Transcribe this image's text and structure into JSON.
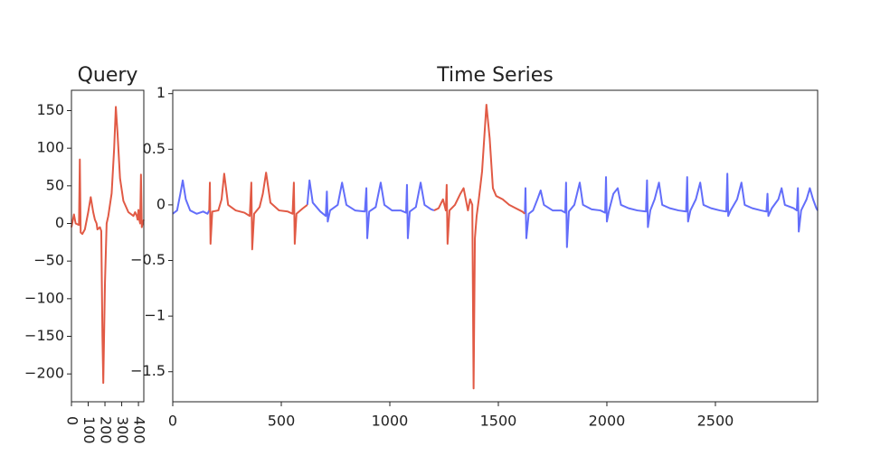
{
  "chart_data": [
    {
      "type": "line",
      "title": "Query",
      "xlim": [
        0,
        432
      ],
      "xticks": [
        0,
        100,
        200,
        300,
        400
      ],
      "ylim": [
        -237,
        177
      ],
      "yticks": [
        {
          "value": -200,
          "label": "−200"
        },
        {
          "value": -150,
          "label": "−150"
        },
        {
          "value": -100,
          "label": "−100"
        },
        {
          "value": -50,
          "label": "−50"
        },
        0,
        50,
        100,
        150
      ],
      "grid": false,
      "series": [
        {
          "color": "#e15a45",
          "x": [
            0,
            15,
            25,
            45,
            50,
            55,
            65,
            80,
            100,
            115,
            130,
            140,
            150,
            155,
            170,
            178,
            185,
            190,
            200,
            210,
            220,
            240,
            255,
            265,
            275,
            290,
            310,
            340,
            370,
            380,
            390,
            395,
            400,
            405,
            410,
            415,
            420,
            425,
            432
          ],
          "values": [
            -5,
            12,
            0,
            -2,
            85,
            -12,
            -14,
            -8,
            15,
            35,
            15,
            5,
            0,
            -8,
            -5,
            -10,
            -150,
            -212,
            -80,
            0,
            10,
            40,
            100,
            155,
            120,
            60,
            30,
            15,
            10,
            15,
            10,
            5,
            18,
            5,
            0,
            65,
            -5,
            0,
            5
          ]
        }
      ]
    },
    {
      "type": "line",
      "title": "Time Series",
      "xlim": [
        0,
        2971
      ],
      "xticks": [
        0,
        500,
        1000,
        1500,
        2000,
        2500
      ],
      "ylim": [
        -1.77,
        1.03
      ],
      "yticks": [
        {
          "value": -1.5,
          "label": "−1.5"
        },
        {
          "value": -1,
          "label": "−1"
        },
        {
          "value": -0.5,
          "label": "−0.5"
        },
        0,
        0.5,
        1
      ],
      "grid": false,
      "series": [
        {
          "color": "#636efa",
          "x": [
            0,
            20,
            35,
            46,
            60,
            80,
            110,
            140,
            160,
            168,
            null,
            620,
            630,
            645,
            680,
            705,
            710,
            714,
            725,
            760,
            780,
            800,
            840,
            885,
            892,
            896,
            905,
            935,
            958,
            975,
            1010,
            1050,
            1075,
            1079,
            1083,
            1092,
            1120,
            1142,
            1160,
            1190,
            1204,
            null,
            1622,
            1625,
            1629,
            1640,
            1660,
            1680,
            1695,
            1710,
            1750,
            1790,
            1808,
            1812,
            1816,
            1825,
            1850,
            1875,
            1890,
            1930,
            1970,
            1992,
            1996,
            2000,
            2010,
            2030,
            2050,
            2065,
            2100,
            2140,
            2180,
            2185,
            2189,
            2200,
            2220,
            2240,
            2255,
            2290,
            2330,
            2365,
            2370,
            2374,
            2385,
            2410,
            2430,
            2445,
            2480,
            2520,
            2550,
            2555,
            2559,
            2570,
            2600,
            2620,
            2635,
            2670,
            2710,
            2735,
            2740,
            2744,
            2760,
            2790,
            2805,
            2820,
            2860,
            2875,
            2880,
            2884,
            2895,
            2920,
            2935,
            2950,
            2965,
            2971
          ],
          "values": [
            -0.08,
            -0.05,
            0.1,
            0.22,
            0.05,
            -0.05,
            -0.08,
            -0.06,
            -0.08,
            -0.05,
            null,
            0.0,
            0.22,
            0.02,
            -0.06,
            -0.1,
            0.12,
            -0.15,
            -0.05,
            0.0,
            0.2,
            0.0,
            -0.05,
            -0.06,
            0.15,
            -0.3,
            -0.06,
            -0.02,
            0.2,
            0.0,
            -0.05,
            -0.05,
            -0.07,
            0.18,
            -0.3,
            -0.06,
            -0.02,
            0.2,
            0.0,
            -0.04,
            -0.05,
            null,
            -0.08,
            0.15,
            -0.3,
            -0.08,
            -0.05,
            0.05,
            0.13,
            0.0,
            -0.05,
            -0.05,
            -0.07,
            0.2,
            -0.38,
            -0.06,
            0.0,
            0.2,
            0.0,
            -0.04,
            -0.05,
            -0.07,
            0.25,
            -0.15,
            -0.05,
            0.1,
            0.15,
            0.0,
            -0.03,
            -0.05,
            -0.06,
            0.22,
            -0.2,
            -0.05,
            0.05,
            0.2,
            0.0,
            -0.03,
            -0.05,
            -0.06,
            0.25,
            -0.15,
            -0.05,
            0.05,
            0.2,
            0.0,
            -0.03,
            -0.05,
            -0.06,
            0.28,
            -0.1,
            -0.05,
            0.05,
            0.2,
            0.0,
            -0.03,
            -0.05,
            -0.06,
            0.1,
            -0.1,
            -0.03,
            0.05,
            0.15,
            0.0,
            -0.03,
            -0.05,
            0.15,
            -0.24,
            -0.05,
            0.05,
            0.15,
            0.05,
            -0.03,
            -0.05
          ]
        },
        {
          "color": "#e15a45",
          "x": [
            168,
            171,
            174,
            182,
            210,
            225,
            237,
            255,
            290,
            330,
            355,
            362,
            366,
            375,
            400,
            415,
            430,
            450,
            490,
            530,
            552,
            558,
            562,
            570,
            600,
            620,
            null,
            1204,
            1225,
            1245,
            1258,
            1262,
            1266,
            1275,
            1300,
            1325,
            1340,
            1360,
            1370,
            1380,
            1386,
            1392,
            1400,
            1410,
            1425,
            1445,
            1460,
            1475,
            1490,
            1520,
            1550,
            1580,
            1610,
            1622
          ],
          "values": [
            -0.05,
            0.2,
            -0.35,
            -0.06,
            -0.05,
            0.05,
            0.28,
            0.0,
            -0.05,
            -0.07,
            -0.1,
            0.2,
            -0.4,
            -0.08,
            -0.02,
            0.1,
            0.29,
            0.02,
            -0.05,
            -0.06,
            -0.08,
            0.2,
            -0.35,
            -0.08,
            -0.03,
            0.0,
            null,
            -0.05,
            -0.03,
            0.05,
            -0.05,
            0.18,
            -0.35,
            -0.05,
            0.0,
            0.1,
            0.15,
            -0.05,
            0.05,
            0.0,
            -1.65,
            -0.3,
            -0.1,
            0.05,
            0.3,
            0.9,
            0.6,
            0.15,
            0.08,
            0.05,
            0.0,
            -0.03,
            -0.06,
            -0.08
          ]
        }
      ]
    }
  ]
}
